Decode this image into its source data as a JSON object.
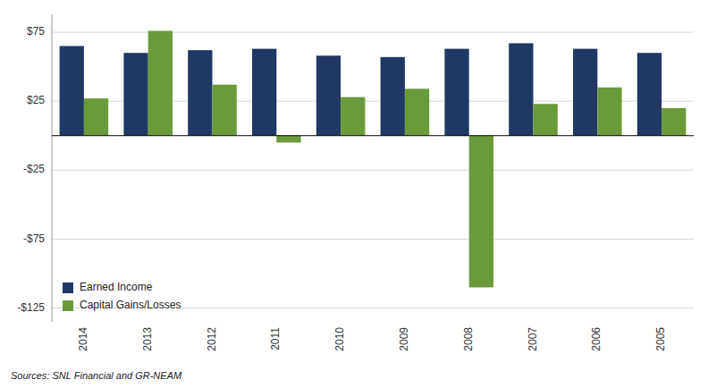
{
  "chart_data": {
    "type": "bar",
    "categories": [
      "2014",
      "2013",
      "2012",
      "2011",
      "2010",
      "2009",
      "2008",
      "2007",
      "2006",
      "2005"
    ],
    "series": [
      {
        "name": "Earned Income",
        "color": "#1F3864",
        "values": [
          65,
          60,
          62,
          63,
          58,
          57,
          63,
          67,
          63,
          60
        ]
      },
      {
        "name": "Capital Gains/Losses",
        "color": "#6A9B3A",
        "values": [
          27,
          76,
          37,
          -5,
          28,
          34,
          -110,
          23,
          35,
          20
        ]
      }
    ],
    "ylim": [
      -135,
      88
    ],
    "yticks": [
      {
        "value": -125,
        "label": "-$125"
      },
      {
        "value": -75,
        "label": "-$75"
      },
      {
        "value": -25,
        "label": "-$25"
      },
      {
        "value": 25,
        "label": "$25"
      },
      {
        "value": 75,
        "label": "$75"
      }
    ],
    "grid": true,
    "legend": "lower left",
    "annotations": [
      "Sources: SNL Financial and GR-NEAM"
    ]
  }
}
